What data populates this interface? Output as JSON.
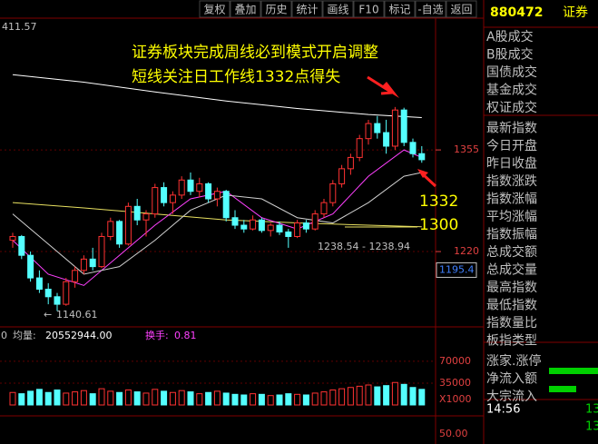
{
  "toolbar": [
    "复权",
    "叠加",
    "历史",
    "统计",
    "画线",
    "F10",
    "标记",
    "-自选",
    "返回"
  ],
  "header": {
    "code": "880472",
    "name": "证券"
  },
  "chart_data": {
    "type": "candlestick",
    "ylim": [
      1126,
      1530
    ],
    "yticks": [
      1220,
      1355
    ],
    "open": [
      1235,
      1240,
      1215,
      1185,
      1170,
      1160,
      1150,
      1180,
      1195,
      1210,
      1200,
      1240,
      1260,
      1230,
      1280,
      1262,
      1270,
      1305,
      1285,
      1295,
      1315,
      1300,
      1310,
      1290,
      1300,
      1265,
      1255,
      1250,
      1262,
      1248,
      1255,
      1246,
      1240,
      1258,
      1250,
      1270,
      1285,
      1310,
      1330,
      1345,
      1370,
      1390,
      1378,
      1360,
      1408,
      1365,
      1350
    ],
    "high": [
      1245,
      1242,
      1220,
      1195,
      1178,
      1165,
      1185,
      1200,
      1215,
      1225,
      1245,
      1265,
      1262,
      1285,
      1290,
      1275,
      1310,
      1312,
      1300,
      1320,
      1325,
      1318,
      1312,
      1305,
      1302,
      1275,
      1262,
      1268,
      1265,
      1258,
      1260,
      1250,
      1262,
      1262,
      1275,
      1290,
      1315,
      1335,
      1350,
      1375,
      1395,
      1400,
      1395,
      1412,
      1411,
      1370,
      1360
    ],
    "low": [
      1225,
      1210,
      1180,
      1165,
      1150,
      1141,
      1148,
      1172,
      1190,
      1195,
      1198,
      1235,
      1225,
      1228,
      1255,
      1240,
      1265,
      1280,
      1270,
      1290,
      1295,
      1292,
      1285,
      1280,
      1260,
      1250,
      1245,
      1248,
      1245,
      1240,
      1242,
      1225,
      1238,
      1245,
      1248,
      1265,
      1280,
      1305,
      1322,
      1340,
      1362,
      1370,
      1350,
      1355,
      1360,
      1345,
      1338
    ],
    "close": [
      1240,
      1215,
      1185,
      1170,
      1160,
      1150,
      1180,
      1195,
      1210,
      1200,
      1240,
      1260,
      1230,
      1280,
      1262,
      1270,
      1305,
      1285,
      1295,
      1315,
      1300,
      1310,
      1290,
      1300,
      1265,
      1255,
      1250,
      1262,
      1248,
      1255,
      1246,
      1240,
      1258,
      1250,
      1270,
      1285,
      1310,
      1330,
      1345,
      1370,
      1390,
      1378,
      1360,
      1408,
      1365,
      1350,
      1342
    ],
    "lines": [
      {
        "color": "#ffffff",
        "x": [
          0,
          8,
          16,
          24,
          32,
          40,
          46
        ],
        "values": [
          1455,
          1445,
          1432,
          1420,
          1410,
          1402,
          1398
        ]
      },
      {
        "color": "#e8e060",
        "x": [
          0,
          8,
          16,
          24,
          32,
          40,
          46
        ],
        "values": [
          1285,
          1278,
          1270,
          1262,
          1258,
          1255,
          1253
        ]
      },
      {
        "color": "#ff40ff",
        "x": [
          0,
          4,
          8,
          12,
          16,
          20,
          24,
          28,
          32,
          36,
          40,
          44,
          46
        ],
        "values": [
          1235,
          1190,
          1175,
          1215,
          1255,
          1290,
          1300,
          1265,
          1250,
          1270,
          1320,
          1355,
          1345
        ]
      },
      {
        "color": "#d0d0d0",
        "x": [
          0,
          4,
          8,
          12,
          16,
          20,
          24,
          28,
          32,
          36,
          40,
          44,
          46
        ],
        "values": [
          1270,
          1230,
          1190,
          1200,
          1235,
          1275,
          1295,
          1290,
          1265,
          1258,
          1285,
          1320,
          1325
        ]
      }
    ],
    "price_tag": 1195.4,
    "low_mark": 1140.61,
    "top_label": "411.57",
    "range_label": "1238.54 - 1238.94"
  },
  "annotations": {
    "line1": "证券板块完成周线必到模式开启调整",
    "line2": "短线关注日工作线1332点得失",
    "level1": "1332",
    "level2": "1300"
  },
  "volume_panel": {
    "prefix": "0",
    "avg_label": "均量:",
    "avg_value": "20552944.00",
    "turnover_label": "换手:",
    "turnover_value": "0.81",
    "unit": "X1000",
    "ylim": [
      0,
      96000
    ],
    "yticks": [
      35000,
      70000
    ],
    "values": [
      20000,
      18000,
      22000,
      25000,
      20000,
      24000,
      19000,
      21000,
      23000,
      18000,
      26000,
      22000,
      20000,
      24000,
      21000,
      19000,
      25000,
      22000,
      20000,
      23000,
      21000,
      18000,
      20000,
      22000,
      19000,
      17000,
      16000,
      18000,
      17000,
      15000,
      16000,
      18000,
      17000,
      16000,
      19000,
      21000,
      24000,
      26000,
      28000,
      30000,
      32000,
      29000,
      31000,
      36000,
      33000,
      28000,
      25000
    ]
  },
  "indicator_panel": {
    "tick": "50.00"
  },
  "side_list": [
    "A股成交",
    "B股成交",
    "国债成交",
    "基金成交",
    "权证成交",
    "最新指数",
    "今日开盘",
    "昨日收盘",
    "指数涨跌",
    "指数涨幅",
    "平均涨幅",
    "指数振幅",
    "总成交额",
    "总成交量",
    "最高指数",
    "最低指数",
    "指数量比",
    "板指类型",
    "涨家.涨停",
    "净流入额",
    "大宗流入"
  ],
  "side_bottom": {
    "time": "14:56",
    "value": "13"
  }
}
